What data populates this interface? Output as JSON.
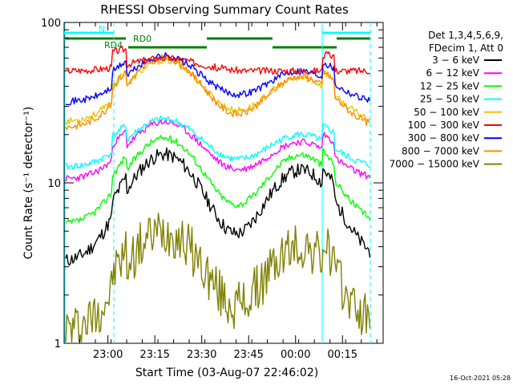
{
  "chart_data": {
    "type": "line",
    "title": "RHESSI Observing Summary Count Rates",
    "xlabel": "Start Time (03-Aug-07 22:46:02)",
    "ylabel": "Count Rate (s⁻¹ detector⁻¹)",
    "y_scale": "log",
    "ylim": [
      1,
      100
    ],
    "y_ticks": [
      1,
      10,
      100
    ],
    "y_tick_labels": [
      "1",
      "10",
      "100"
    ],
    "xlim": [
      "22:46",
      "00:28"
    ],
    "x_ticks": [
      "23:00",
      "23:15",
      "23:30",
      "23:45",
      "00:00",
      "00:15"
    ],
    "legend_title": [
      "Det 1,3,4,5,6,9,",
      "FDecim 1, Att 0"
    ],
    "legend_position": "right",
    "series": [
      {
        "name": "3 − 6 keV",
        "color": "#000000",
        "y_profile": {
          "base": 3.2,
          "peak1": 15,
          "peak2": 12
        }
      },
      {
        "name": "6 − 12 keV",
        "color": "#ff00ff",
        "y_profile": {
          "base": 10.5,
          "peak1": 24,
          "peak2": 18
        }
      },
      {
        "name": "12 − 25 keV",
        "color": "#00ff00",
        "y_profile": {
          "base": 5.5,
          "peak1": 19,
          "peak2": 15
        }
      },
      {
        "name": "25 − 50 keV",
        "color": "#00ffff",
        "y_profile": {
          "base": 12.5,
          "peak1": 25,
          "peak2": 20
        }
      },
      {
        "name": "50 − 100 keV",
        "color": "#e6c800",
        "y_profile": {
          "base": 24,
          "peak1": 58,
          "peak2": 45
        }
      },
      {
        "name": "100 − 300 keV",
        "color": "#ff0000",
        "y_profile": {
          "base": 50,
          "peak1": 60,
          "peak2": 47
        }
      },
      {
        "name": "300 − 800 keV",
        "color": "#0000ff",
        "y_profile": {
          "base": 32,
          "peak1": 62,
          "peak2": 50
        }
      },
      {
        "name": "800 − 7000 keV",
        "color": "#ff8c00",
        "y_profile": {
          "base": 22,
          "peak1": 60,
          "peak2": 46
        }
      },
      {
        "name": "7000 − 15000 keV",
        "color": "#808000",
        "y_profile": {
          "base": 1.2,
          "peak1": 5,
          "peak2": 4
        }
      }
    ],
    "flags": [
      {
        "name": "N",
        "color": "#00ffff"
      },
      {
        "name": "RD4",
        "color": "#008000"
      },
      {
        "name": "RD0",
        "color": "#008000"
      }
    ],
    "footer_timestamp": "16-Oct-2021 05:28"
  }
}
